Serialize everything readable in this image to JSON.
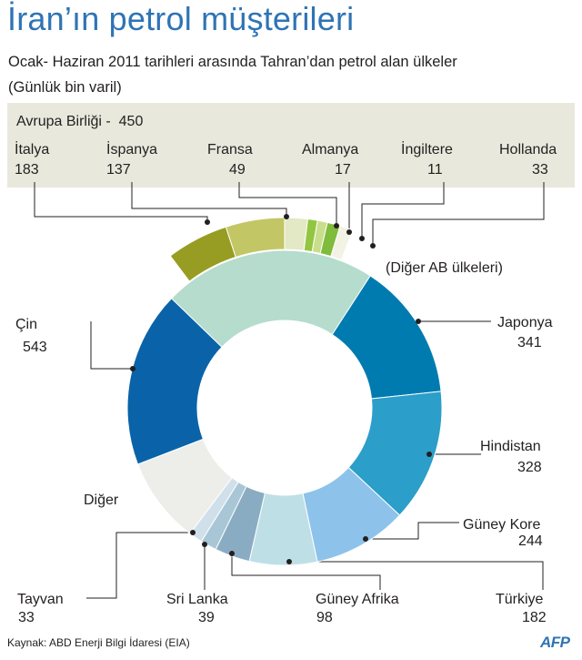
{
  "header": {
    "title": "İran’ın petrol müşterileri",
    "subtitle_line1": "Ocak- Haziran 2011 tarihleri arasında Tahran’dan petrol alan ülkeler",
    "subtitle_line2": "(Günlük bin varil)"
  },
  "eu": {
    "label": "Avrupa Birliği -",
    "total": "450",
    "countries": [
      {
        "name": "İtalya",
        "value": "183"
      },
      {
        "name": "İspanya",
        "value": "137"
      },
      {
        "name": "Fransa",
        "value": "49"
      },
      {
        "name": "Almanya",
        "value": "17"
      },
      {
        "name": "İngiltere",
        "value": "11"
      },
      {
        "name": "Hollanda",
        "value": "33"
      }
    ],
    "other_label": "(Diğer AB ülkeleri)"
  },
  "labels": {
    "cin": {
      "name": "Çin",
      "value": "543"
    },
    "japonya": {
      "name": "Japonya",
      "value": "341"
    },
    "hindistan": {
      "name": "Hindistan",
      "value": "328"
    },
    "guney_kore": {
      "name": "Güney Kore",
      "value": "244"
    },
    "turkiye": {
      "name": "Türkiye",
      "value": "182"
    },
    "guney_afrika": {
      "name": "Güney Afrika",
      "value": "98"
    },
    "sri_lanka": {
      "name": "Sri Lanka",
      "value": "39"
    },
    "tayvan": {
      "name": "Tayvan",
      "value": "33"
    },
    "diger": {
      "name": "Diğer"
    }
  },
  "chart_data": {
    "type": "pie",
    "variant": "donut",
    "unit": "Günlük bin varil",
    "slices": [
      {
        "name": "Avrupa Birliği",
        "value": 450,
        "color": "#b5dccd"
      },
      {
        "name": "Japonya",
        "value": 341,
        "color": "#007bb0"
      },
      {
        "name": "Hindistan",
        "value": 328,
        "color": "#2b9ec9"
      },
      {
        "name": "Güney Kore",
        "value": 244,
        "color": "#8dc3ea"
      },
      {
        "name": "Türkiye",
        "value": 182,
        "color": "#bfdfe7"
      },
      {
        "name": "Güney Afrika",
        "value": 98,
        "color": "#8aacc3"
      },
      {
        "name": "Sri Lanka",
        "value": 39,
        "color": "#a9c6d6"
      },
      {
        "name": "Tayvan",
        "value": 33,
        "color": "#cfe0ea"
      },
      {
        "name": "Diğer",
        "value": null,
        "color": "#ededea"
      },
      {
        "name": "Çin",
        "value": 543,
        "color": "#0a63a8"
      }
    ],
    "eu_breakdown": [
      {
        "name": "İtalya",
        "value": 183,
        "color": "#979d22"
      },
      {
        "name": "İspanya",
        "value": 137,
        "color": "#c3c664"
      },
      {
        "name": "Fransa",
        "value": 49,
        "color": "#e3e8c5"
      },
      {
        "name": "Almanya",
        "value": 17,
        "color": "#93c640"
      },
      {
        "name": "İngiltere",
        "value": 11,
        "color": "#c9de8c"
      },
      {
        "name": "Hollanda",
        "value": 33,
        "color": "#7fbc3b"
      },
      {
        "name": "Diğer AB ülkeleri",
        "value": null,
        "color": "#f2f3e4"
      }
    ]
  },
  "footer": {
    "source": "Kaynak: ABD Enerji Bilgi İdaresi (EIA)",
    "logo": "AFP"
  }
}
